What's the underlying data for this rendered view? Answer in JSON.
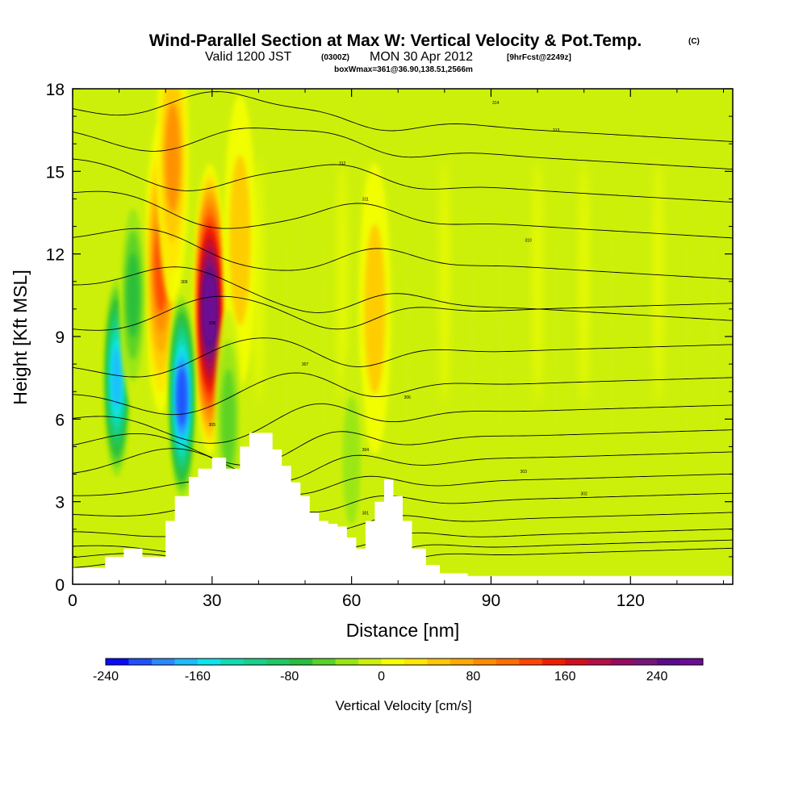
{
  "header": {
    "title": "Wind-Parallel Section at Max W: Vertical Velocity & Pot.Temp.",
    "copyright_mark": "(C)",
    "valid_prefix": "Valid 1200 JST",
    "valid_zulu": "(0300Z)",
    "valid_date": "MON 30 Apr 2012",
    "forecast_tag": "[9hrFcst@2249z]",
    "box_info": "boxWmax=361@36.90,138.51,2566m"
  },
  "chart_data": {
    "type": "heatmap",
    "xlabel": "Distance [nm]",
    "ylabel": "Height [Kft MSL]",
    "xlim": [
      0,
      142
    ],
    "ylim": [
      0,
      18
    ],
    "x_ticks": [
      0,
      30,
      60,
      90,
      120
    ],
    "y_ticks": [
      0,
      3,
      6,
      9,
      12,
      15,
      18
    ],
    "colorbar": {
      "label": "Vertical Velocity [cm/s]",
      "min": -240,
      "max": 280,
      "step": 20,
      "tick_values": [
        -240,
        -160,
        -80,
        0,
        80,
        160,
        240
      ],
      "colors": [
        "#0a0aff",
        "#1e50ff",
        "#2a88ff",
        "#1cbcff",
        "#0ae6f0",
        "#10dcb4",
        "#18d28c",
        "#20c864",
        "#28be3c",
        "#58d228",
        "#96e614",
        "#cdf00a",
        "#f5ff00",
        "#ffe600",
        "#ffc800",
        "#ffaa00",
        "#ff8c00",
        "#ff6e00",
        "#ff4600",
        "#f01e00",
        "#d20f1e",
        "#b40f46",
        "#960a64",
        "#78147d",
        "#5a0a8c",
        "#6e0a96"
      ]
    },
    "theta_contour_labels": [
      "314",
      "313",
      "312",
      "311",
      "310",
      "309",
      "308",
      "307",
      "306",
      "305",
      "304",
      "303",
      "302",
      "301"
    ],
    "terrain_kft": {
      "x": [
        0,
        7,
        7,
        11,
        11,
        15,
        15,
        20,
        20,
        22,
        22,
        25,
        25,
        27,
        27,
        30,
        30,
        33,
        33,
        36,
        36,
        38,
        38,
        40,
        40,
        43,
        43,
        45,
        45,
        47,
        47,
        49,
        49,
        51,
        51,
        53,
        53,
        55,
        55,
        57,
        57,
        59,
        59,
        61,
        61,
        63,
        63,
        65,
        65,
        67,
        67,
        69,
        69,
        71,
        71,
        73,
        73,
        76,
        76,
        79,
        79,
        85,
        85,
        142
      ],
      "y": [
        0.6,
        0.6,
        1.0,
        1.0,
        1.3,
        1.3,
        1.0,
        1.0,
        2.3,
        2.3,
        3.2,
        3.2,
        3.9,
        3.9,
        4.2,
        4.2,
        4.6,
        4.6,
        4.2,
        4.2,
        5.0,
        5.0,
        5.5,
        5.5,
        5.5,
        5.5,
        4.9,
        4.9,
        4.3,
        4.3,
        3.7,
        3.7,
        3.2,
        3.2,
        2.6,
        2.6,
        2.3,
        2.3,
        2.2,
        2.2,
        2.1,
        2.1,
        1.7,
        1.7,
        1.3,
        1.3,
        2.3,
        2.3,
        3.0,
        3.0,
        3.8,
        3.8,
        3.2,
        3.2,
        2.3,
        2.3,
        1.3,
        1.3,
        0.7,
        0.7,
        0.4,
        0.4,
        0.3,
        0.3
      ]
    },
    "updrafts_cm_s": [
      {
        "x": 29.5,
        "y": 10.0,
        "value": 280
      },
      {
        "x": 19.0,
        "y": 11.5,
        "value": 120
      },
      {
        "x": 21.5,
        "y": 15.5,
        "value": 80
      },
      {
        "x": 65.0,
        "y": 10.0,
        "value": 40
      },
      {
        "x": 36.0,
        "y": 12.5,
        "value": 40
      }
    ],
    "downdrafts_cm_s": [
      {
        "x": 9.5,
        "y": 7.5,
        "value": -180
      },
      {
        "x": 23.5,
        "y": 6.8,
        "value": -220
      },
      {
        "x": 13.0,
        "y": 10.5,
        "value": -80
      },
      {
        "x": 33.5,
        "y": 6.0,
        "value": -60
      },
      {
        "x": 60.0,
        "y": 4.5,
        "value": -40
      }
    ]
  }
}
